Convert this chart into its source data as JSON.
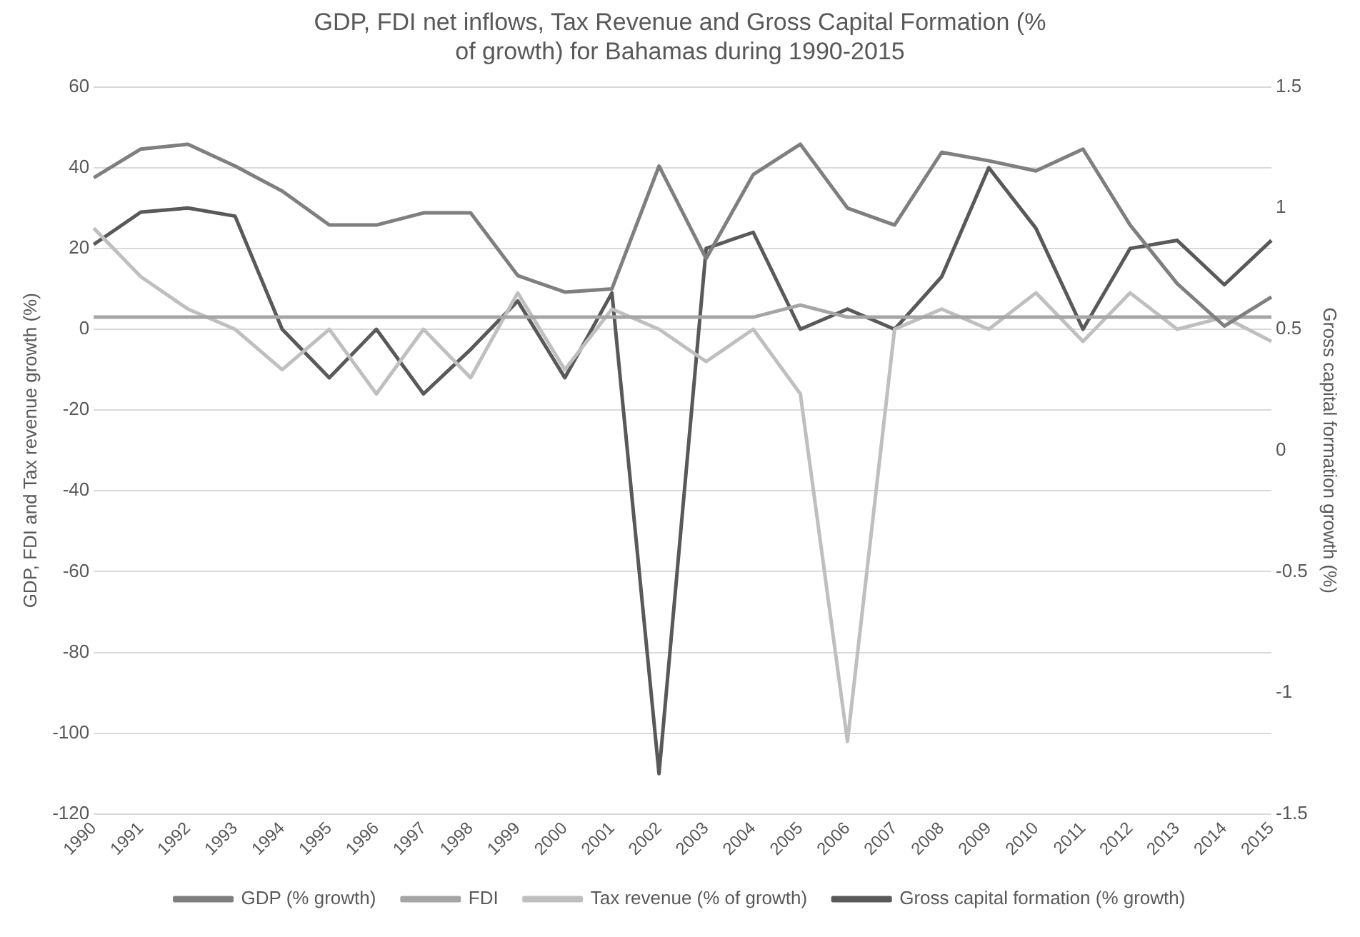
{
  "chart_data": {
    "type": "line",
    "title": [
      "GDP, FDI net inflows, Tax Revenue and Gross Capital Formation (%",
      "of growth) for Bahamas during 1990-2015"
    ],
    "xlabel": null,
    "ylabel": "GDP, FDI and Tax revenue growth (%)",
    "y2label": "Gross capital formation growth (%)",
    "categories": [
      "1990",
      "1991",
      "1992",
      "1993",
      "1994",
      "1995",
      "1996",
      "1997",
      "1998",
      "1999",
      "2000",
      "2001",
      "2002",
      "2003",
      "2004",
      "2005",
      "2006",
      "2007",
      "2008",
      "2009",
      "2010",
      "2011",
      "2012",
      "2013",
      "2014",
      "2015"
    ],
    "series": [
      {
        "name": "GDP (% growth)",
        "color": "#7f7f7f",
        "values": [
          37.5,
          44.6,
          45.8,
          40.4,
          34.2,
          25.8,
          25.8,
          28.8,
          28.8,
          13.3,
          9.2,
          10,
          40.4,
          17.5,
          38.3,
          45.8,
          30,
          25.8,
          43.8,
          41.7,
          39.2,
          44.6,
          25.8,
          11.3,
          0.8,
          8
        ]
      },
      {
        "name": "FDI",
        "color": "#a5a5a5",
        "axis": "y2",
        "values": [
          0.55,
          0.55,
          0.55,
          0.55,
          0.55,
          0.55,
          0.55,
          0.55,
          0.55,
          0.55,
          0.55,
          0.55,
          0.55,
          0.55,
          0.55,
          0.6,
          0.55,
          0.55,
          0.55,
          0.55,
          0.55,
          0.55,
          0.55,
          0.55,
          0.55,
          0.55
        ]
      },
      {
        "name": "Tax revenue (% of growth)",
        "color": "#bfbfbf",
        "values": [
          25,
          13,
          5,
          0,
          -10,
          0,
          -16,
          0,
          -12,
          9,
          -10,
          5,
          0,
          -8,
          0,
          -16,
          -102,
          0,
          5,
          0,
          9,
          -3,
          9,
          0,
          3,
          -3
        ]
      },
      {
        "name": "Gross capital formation (% growth)",
        "color": "#595959",
        "values": [
          21,
          29,
          30,
          28,
          0,
          -12,
          0,
          -16,
          -5,
          7,
          -12,
          9,
          -110,
          20,
          24,
          0,
          5,
          0,
          13,
          40,
          25,
          0,
          20,
          22,
          11,
          22
        ]
      }
    ],
    "ylim": [
      -120,
      60
    ],
    "yticks": [
      -120,
      -100,
      -80,
      -60,
      -40,
      -20,
      0,
      20,
      40,
      60
    ],
    "y2lim": [
      -1.5,
      1.5
    ],
    "y2ticks": [
      -1.5,
      -1,
      -0.5,
      0,
      0.5,
      1,
      1.5
    ],
    "grid": "y",
    "legend": "bottom",
    "marker": "none",
    "line_style": "solid"
  }
}
